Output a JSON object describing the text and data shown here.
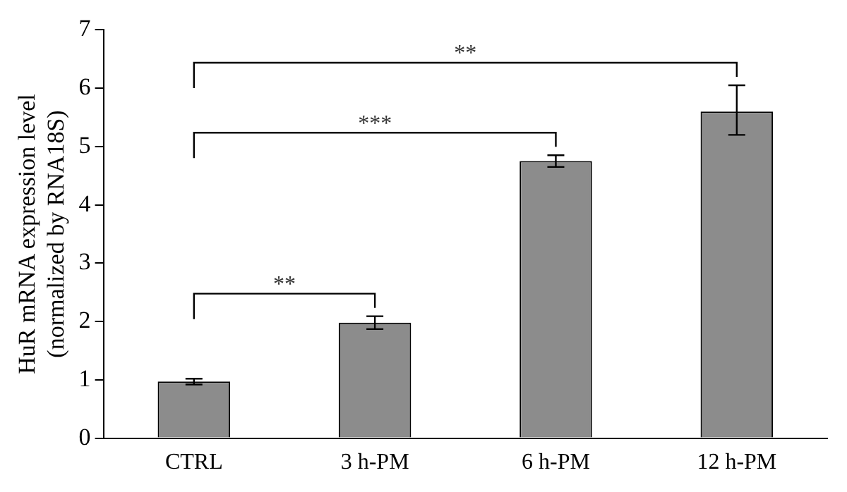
{
  "chart_data": {
    "type": "bar",
    "ylabel": "HuR mRNA expression level\n(normalized by RNA18S)",
    "categories": [
      "CTRL",
      "3 h-PM",
      "6 h-PM",
      "12 h-PM"
    ],
    "values": [
      0.97,
      1.98,
      4.75,
      5.6
    ],
    "errors": [
      0.05,
      0.11,
      0.1,
      [
        5.2,
        6.05
      ]
    ],
    "color": "#8c8c8c",
    "ylim": [
      0,
      7
    ],
    "yticks": [
      0,
      1,
      2,
      3,
      4,
      5,
      6,
      7
    ],
    "grid": false,
    "legend": false,
    "annotations": [
      "**",
      "***",
      "**"
    ]
  }
}
